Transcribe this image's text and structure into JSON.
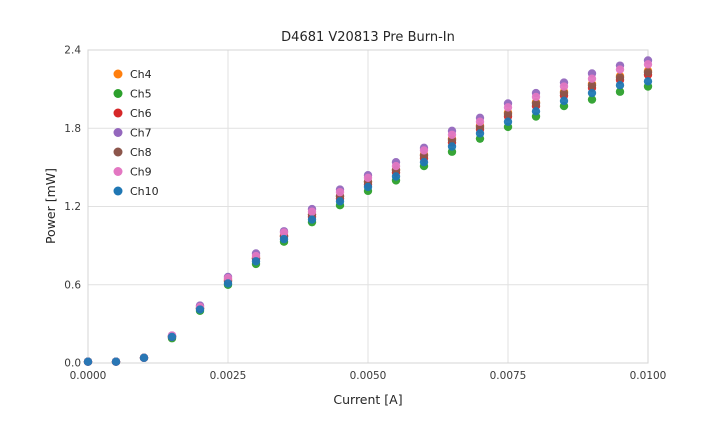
{
  "chart_data": {
    "type": "scatter",
    "title": "D4681 V20813 Pre Burn-In",
    "xlabel": "Current [A]",
    "ylabel": "Power [mW]",
    "xlim": [
      0.0,
      0.01
    ],
    "ylim": [
      0.0,
      2.4
    ],
    "grid": true,
    "legend_position": "upper-left-inside",
    "x_ticks": [
      0.0,
      0.0025,
      0.005,
      0.0075,
      0.01
    ],
    "x_tick_labels": [
      "0.0000",
      "0.0025",
      "0.0050",
      "0.0075",
      "0.0100"
    ],
    "y_ticks": [
      0.0,
      0.6,
      1.2,
      1.8,
      2.4
    ],
    "y_tick_labels": [
      "0.0",
      "0.6",
      "1.2",
      "1.8",
      "2.4"
    ],
    "x": [
      0.0,
      0.0005,
      0.001,
      0.0015,
      0.002,
      0.0025,
      0.003,
      0.0035,
      0.004,
      0.0045,
      0.005,
      0.0055,
      0.006,
      0.0065,
      0.007,
      0.0075,
      0.008,
      0.0085,
      0.009,
      0.0095,
      0.01
    ],
    "series": [
      {
        "name": "Ch4",
        "color": "#ff7f0e",
        "values": [
          0.01,
          0.01,
          0.04,
          0.2,
          0.42,
          0.64,
          0.81,
          0.98,
          1.14,
          1.28,
          1.39,
          1.48,
          1.6,
          1.72,
          1.82,
          1.92,
          2.0,
          2.08,
          2.14,
          2.2,
          2.24
        ]
      },
      {
        "name": "Ch5",
        "color": "#2ca02c",
        "values": [
          0.01,
          0.01,
          0.04,
          0.19,
          0.4,
          0.6,
          0.76,
          0.93,
          1.08,
          1.21,
          1.32,
          1.4,
          1.51,
          1.62,
          1.72,
          1.81,
          1.89,
          1.97,
          2.02,
          2.08,
          2.12
        ]
      },
      {
        "name": "Ch6",
        "color": "#d62728",
        "values": [
          0.01,
          0.01,
          0.04,
          0.2,
          0.42,
          0.63,
          0.8,
          0.97,
          1.12,
          1.26,
          1.37,
          1.46,
          1.57,
          1.69,
          1.79,
          1.89,
          1.97,
          2.05,
          2.11,
          2.17,
          2.21
        ]
      },
      {
        "name": "Ch7",
        "color": "#9467bd",
        "values": [
          0.01,
          0.01,
          0.04,
          0.21,
          0.44,
          0.66,
          0.84,
          1.01,
          1.18,
          1.33,
          1.44,
          1.54,
          1.65,
          1.78,
          1.88,
          1.99,
          2.07,
          2.15,
          2.22,
          2.28,
          2.32
        ]
      },
      {
        "name": "Ch8",
        "color": "#8c564b",
        "values": [
          0.01,
          0.01,
          0.04,
          0.2,
          0.42,
          0.63,
          0.8,
          0.97,
          1.14,
          1.28,
          1.39,
          1.48,
          1.59,
          1.71,
          1.81,
          1.91,
          1.99,
          2.07,
          2.13,
          2.19,
          2.23
        ]
      },
      {
        "name": "Ch9",
        "color": "#e377c2",
        "values": [
          0.01,
          0.01,
          0.04,
          0.21,
          0.43,
          0.65,
          0.82,
          1.0,
          1.16,
          1.31,
          1.42,
          1.51,
          1.63,
          1.75,
          1.85,
          1.96,
          2.04,
          2.12,
          2.18,
          2.25,
          2.29
        ]
      },
      {
        "name": "Ch10",
        "color": "#1f77b4",
        "values": [
          0.01,
          0.01,
          0.04,
          0.2,
          0.41,
          0.61,
          0.78,
          0.95,
          1.1,
          1.24,
          1.35,
          1.43,
          1.54,
          1.66,
          1.76,
          1.85,
          1.93,
          2.01,
          2.07,
          2.13,
          2.16
        ]
      }
    ],
    "style": {
      "grid_color": "#e1e1e1",
      "spine_color": "#d5d5d5",
      "marker_radius": 4.2
    }
  }
}
